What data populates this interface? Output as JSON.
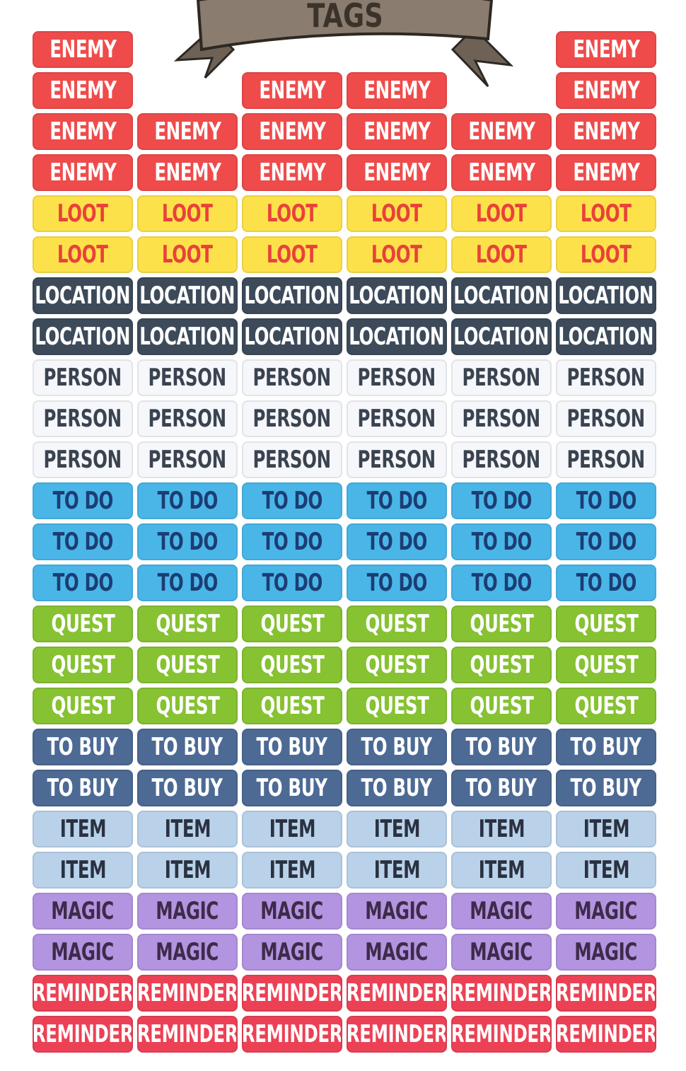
{
  "header": {
    "title": "TAGS"
  },
  "sheet": {
    "rows": [
      {
        "fill": "#ef4b4b",
        "color": "#ffffff",
        "tags": [
          "ENEMY",
          null,
          null,
          null,
          null,
          "ENEMY"
        ]
      },
      {
        "fill": "#ef4b4b",
        "color": "#ffffff",
        "tags": [
          "ENEMY",
          null,
          "ENEMY",
          "ENEMY",
          null,
          "ENEMY"
        ]
      },
      {
        "fill": "#ef4b4b",
        "color": "#ffffff",
        "tags": [
          "ENEMY",
          "ENEMY",
          "ENEMY",
          "ENEMY",
          "ENEMY",
          "ENEMY"
        ]
      },
      {
        "fill": "#ef4b4b",
        "color": "#ffffff",
        "tags": [
          "ENEMY",
          "ENEMY",
          "ENEMY",
          "ENEMY",
          "ENEMY",
          "ENEMY"
        ]
      },
      {
        "fill": "#fde14a",
        "color": "#e8423a",
        "tags": [
          "LOOT",
          "LOOT",
          "LOOT",
          "LOOT",
          "LOOT",
          "LOOT"
        ]
      },
      {
        "fill": "#fde14a",
        "color": "#e8423a",
        "tags": [
          "LOOT",
          "LOOT",
          "LOOT",
          "LOOT",
          "LOOT",
          "LOOT"
        ]
      },
      {
        "fill": "#3c4a5a",
        "color": "#ffffff",
        "tags": [
          "LOCATION",
          "LOCATION",
          "LOCATION",
          "LOCATION",
          "LOCATION",
          "LOCATION"
        ]
      },
      {
        "fill": "#3c4a5a",
        "color": "#ffffff",
        "tags": [
          "LOCATION",
          "LOCATION",
          "LOCATION",
          "LOCATION",
          "LOCATION",
          "LOCATION"
        ]
      },
      {
        "fill": "#f6f7fb",
        "color": "#3a4350",
        "tags": [
          "PERSON",
          "PERSON",
          "PERSON",
          "PERSON",
          "PERSON",
          "PERSON"
        ]
      },
      {
        "fill": "#f6f7fb",
        "color": "#3a4350",
        "tags": [
          "PERSON",
          "PERSON",
          "PERSON",
          "PERSON",
          "PERSON",
          "PERSON"
        ]
      },
      {
        "fill": "#f6f7fb",
        "color": "#3a4350",
        "tags": [
          "PERSON",
          "PERSON",
          "PERSON",
          "PERSON",
          "PERSON",
          "PERSON"
        ]
      },
      {
        "fill": "#4ab6e8",
        "color": "#1c3d73",
        "tags": [
          "TO DO",
          "TO DO",
          "TO DO",
          "TO DO",
          "TO DO",
          "TO DO"
        ]
      },
      {
        "fill": "#4ab6e8",
        "color": "#1c3d73",
        "tags": [
          "TO DO",
          "TO DO",
          "TO DO",
          "TO DO",
          "TO DO",
          "TO DO"
        ]
      },
      {
        "fill": "#4ab6e8",
        "color": "#1c3d73",
        "tags": [
          "TO DO",
          "TO DO",
          "TO DO",
          "TO DO",
          "TO DO",
          "TO DO"
        ]
      },
      {
        "fill": "#86c232",
        "color": "#ffffff",
        "tags": [
          "QUEST",
          "QUEST",
          "QUEST",
          "QUEST",
          "QUEST",
          "QUEST"
        ]
      },
      {
        "fill": "#86c232",
        "color": "#ffffff",
        "tags": [
          "QUEST",
          "QUEST",
          "QUEST",
          "QUEST",
          "QUEST",
          "QUEST"
        ]
      },
      {
        "fill": "#86c232",
        "color": "#ffffff",
        "tags": [
          "QUEST",
          "QUEST",
          "QUEST",
          "QUEST",
          "QUEST",
          "QUEST"
        ]
      },
      {
        "fill": "#4c6a94",
        "color": "#ffffff",
        "tags": [
          "TO BUY",
          "TO BUY",
          "TO BUY",
          "TO BUY",
          "TO BUY",
          "TO BUY"
        ]
      },
      {
        "fill": "#4c6a94",
        "color": "#ffffff",
        "tags": [
          "TO BUY",
          "TO BUY",
          "TO BUY",
          "TO BUY",
          "TO BUY",
          "TO BUY"
        ]
      },
      {
        "fill": "#b9d2ea",
        "color": "#2a3140",
        "tags": [
          "ITEM",
          "ITEM",
          "ITEM",
          "ITEM",
          "ITEM",
          "ITEM"
        ]
      },
      {
        "fill": "#b9d2ea",
        "color": "#2a3140",
        "tags": [
          "ITEM",
          "ITEM",
          "ITEM",
          "ITEM",
          "ITEM",
          "ITEM"
        ]
      },
      {
        "fill": "#b294e0",
        "color": "#3e2b4a",
        "tags": [
          "MAGIC",
          "MAGIC",
          "MAGIC",
          "MAGIC",
          "MAGIC",
          "MAGIC"
        ]
      },
      {
        "fill": "#b294e0",
        "color": "#3e2b4a",
        "tags": [
          "MAGIC",
          "MAGIC",
          "MAGIC",
          "MAGIC",
          "MAGIC",
          "MAGIC"
        ]
      },
      {
        "fill": "#ec4155",
        "color": "#ffffff",
        "tags": [
          "REMINDER",
          "REMINDER",
          "REMINDER",
          "REMINDER",
          "REMINDER",
          "REMINDER"
        ]
      },
      {
        "fill": "#ec4155",
        "color": "#ffffff",
        "tags": [
          "REMINDER",
          "REMINDER",
          "REMINDER",
          "REMINDER",
          "REMINDER",
          "REMINDER"
        ]
      }
    ]
  }
}
